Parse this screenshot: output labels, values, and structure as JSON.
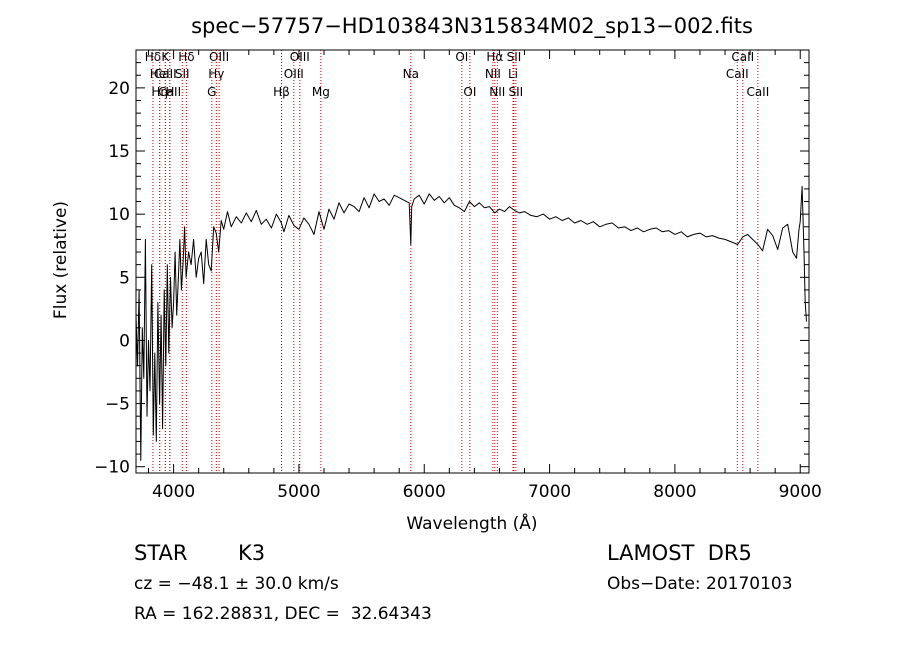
{
  "chart_data": {
    "type": "line",
    "title": "spec−57757−HD103843N315834M02_sp13−002.fits",
    "xlabel": "Wavelength (Å)",
    "ylabel": "Flux (relative)",
    "xlim": [
      3700,
      9070
    ],
    "ylim": [
      -10.5,
      23
    ],
    "xticks": [
      4000,
      5000,
      6000,
      7000,
      8000,
      9000
    ],
    "xtick_labels": [
      "4000",
      "5000",
      "6000",
      "7000",
      "8000",
      "9000"
    ],
    "yticks": [
      -10,
      -5,
      0,
      5,
      10,
      15,
      20
    ],
    "ytick_labels": [
      "−10",
      "−5",
      "0",
      "5",
      "10",
      "15",
      "20"
    ],
    "grid": false,
    "series": [
      {
        "x": [
          3700,
          3712,
          3725,
          3738,
          3750,
          3762,
          3775,
          3788,
          3800,
          3812,
          3825,
          3838,
          3850,
          3862,
          3875,
          3888,
          3900,
          3912,
          3925,
          3938,
          3950,
          3962,
          3975,
          3988,
          4000,
          4012,
          4025,
          4038,
          4050,
          4062,
          4075,
          4088,
          4100,
          4120,
          4140,
          4160,
          4180,
          4200,
          4220,
          4240,
          4260,
          4280,
          4300,
          4320,
          4340,
          4360,
          4380,
          4400,
          4430,
          4460,
          4500,
          4540,
          4580,
          4620,
          4660,
          4700,
          4740,
          4780,
          4820,
          4860,
          4880,
          4920,
          4960,
          5000,
          5040,
          5080,
          5120,
          5160,
          5180,
          5200,
          5240,
          5280,
          5320,
          5360,
          5400,
          5440,
          5480,
          5520,
          5560,
          5600,
          5640,
          5680,
          5720,
          5760,
          5800,
          5840,
          5880,
          5893,
          5900,
          5920,
          5960,
          6000,
          6040,
          6080,
          6120,
          6160,
          6200,
          6240,
          6280,
          6320,
          6360,
          6400,
          6440,
          6480,
          6520,
          6563,
          6600,
          6640,
          6680,
          6720,
          6760,
          6800,
          6850,
          6900,
          6950,
          7000,
          7050,
          7100,
          7150,
          7200,
          7250,
          7300,
          7350,
          7400,
          7450,
          7500,
          7550,
          7600,
          7650,
          7700,
          7750,
          7800,
          7850,
          7900,
          7950,
          8000,
          8050,
          8100,
          8150,
          8200,
          8250,
          8300,
          8350,
          8400,
          8450,
          8500,
          8542,
          8580,
          8620,
          8662,
          8700,
          8740,
          8780,
          8820,
          8860,
          8900,
          8940,
          8970,
          8990,
          9000,
          9015,
          9030,
          9040,
          9050
        ],
        "values": [
          2,
          -2,
          4,
          -9.5,
          1,
          -3,
          8,
          -6,
          0,
          -4,
          6,
          -7.5,
          -1,
          -8,
          3,
          -5,
          2,
          -7,
          4,
          -2,
          6,
          -1,
          5,
          1,
          3,
          7,
          2,
          5,
          8,
          4,
          6,
          9,
          5,
          7,
          6,
          8,
          5,
          6.5,
          7,
          4.5,
          8,
          6,
          5.5,
          9,
          8.5,
          7,
          9.5,
          8.8,
          10.2,
          9,
          9.8,
          9.3,
          10.1,
          9.4,
          10.3,
          9.2,
          9.6,
          8.9,
          10,
          9.3,
          8.6,
          9.9,
          9.1,
          8.8,
          9.7,
          9.2,
          8.4,
          10.2,
          9.5,
          8.8,
          10.4,
          9.6,
          10.9,
          10.1,
          10.8,
          10.6,
          10.2,
          11.3,
          10.5,
          11.6,
          11,
          11.2,
          10.7,
          11.5,
          11.3,
          11.1,
          10.9,
          7.6,
          10.6,
          11.2,
          11.5,
          10.8,
          11.6,
          11.1,
          11.4,
          10.9,
          11.3,
          10.7,
          10.5,
          10.2,
          11,
          10.6,
          10.9,
          10.5,
          10.6,
          10.1,
          10.4,
          10.2,
          10.6,
          10.3,
          10.1,
          10.2,
          9.9,
          9.8,
          10,
          9.6,
          9.8,
          9.5,
          9.7,
          9.3,
          9.5,
          9.2,
          9.4,
          9,
          9.2,
          9.3,
          8.9,
          9,
          8.7,
          8.9,
          8.6,
          8.8,
          8.9,
          8.6,
          8.7,
          8.4,
          8.6,
          8.2,
          8.4,
          8.5,
          8.2,
          8.3,
          8.1,
          8,
          7.8,
          7.6,
          8.2,
          8.4,
          8,
          7.6,
          7.1,
          8.8,
          8.3,
          7.2,
          8.9,
          9.2,
          7,
          6.5,
          8.8,
          9.4,
          12.2,
          7,
          3,
          1.5
        ]
      }
    ],
    "lines": [
      {
        "label": "Hδ",
        "x": 3835,
        "row": 1
      },
      {
        "label": "CaII",
        "x": 3934,
        "row": 2
      },
      {
        "label": "CaII",
        "x": 3969,
        "row": 3
      },
      {
        "label": "Hη",
        "x": 3889,
        "row": 3
      },
      {
        "label": "K",
        "x": 3934,
        "row": 1
      },
      {
        "label": "HeI",
        "x": 3889,
        "row": 2
      },
      {
        "label": "H",
        "x": 3970,
        "row": 3
      },
      {
        "label": "Hδ",
        "x": 4102,
        "row": 1
      },
      {
        "label": "SII",
        "x": 4069,
        "row": 2
      },
      {
        "label": "OIII",
        "x": 4363,
        "row": 1
      },
      {
        "label": "Hγ",
        "x": 4341,
        "row": 2
      },
      {
        "label": "G",
        "x": 4305,
        "row": 3
      },
      {
        "label": "Hβ",
        "x": 4861,
        "row": 3
      },
      {
        "label": "OIII",
        "x": 5007,
        "row": 1
      },
      {
        "label": "OIII",
        "x": 4959,
        "row": 2
      },
      {
        "label": "Mg",
        "x": 5175,
        "row": 3
      },
      {
        "label": "Na",
        "x": 5893,
        "row": 2
      },
      {
        "label": "OI",
        "x": 6300,
        "row": 1
      },
      {
        "label": "OI",
        "x": 6364,
        "row": 3
      },
      {
        "label": "Hα",
        "x": 6563,
        "row": 1
      },
      {
        "label": "NII",
        "x": 6548,
        "row": 2
      },
      {
        "label": "NII",
        "x": 6583,
        "row": 3
      },
      {
        "label": "SII",
        "x": 6716,
        "row": 1
      },
      {
        "label": "Li",
        "x": 6708,
        "row": 2
      },
      {
        "label": "SII",
        "x": 6731,
        "row": 3
      },
      {
        "label": "CaII",
        "x": 8542,
        "row": 1
      },
      {
        "label": "CaII",
        "x": 8498,
        "row": 2
      },
      {
        "label": "CaII",
        "x": 8662,
        "row": 3
      }
    ]
  },
  "info": {
    "object_type": "STAR",
    "subclass": "K3",
    "survey": "LAMOST  DR5",
    "cz": "cz = −48.1 ± 30.0 km/s",
    "obs_date": "Obs−Date: 20170103",
    "coords": "RA = 162.28831, DEC =  32.64343"
  }
}
